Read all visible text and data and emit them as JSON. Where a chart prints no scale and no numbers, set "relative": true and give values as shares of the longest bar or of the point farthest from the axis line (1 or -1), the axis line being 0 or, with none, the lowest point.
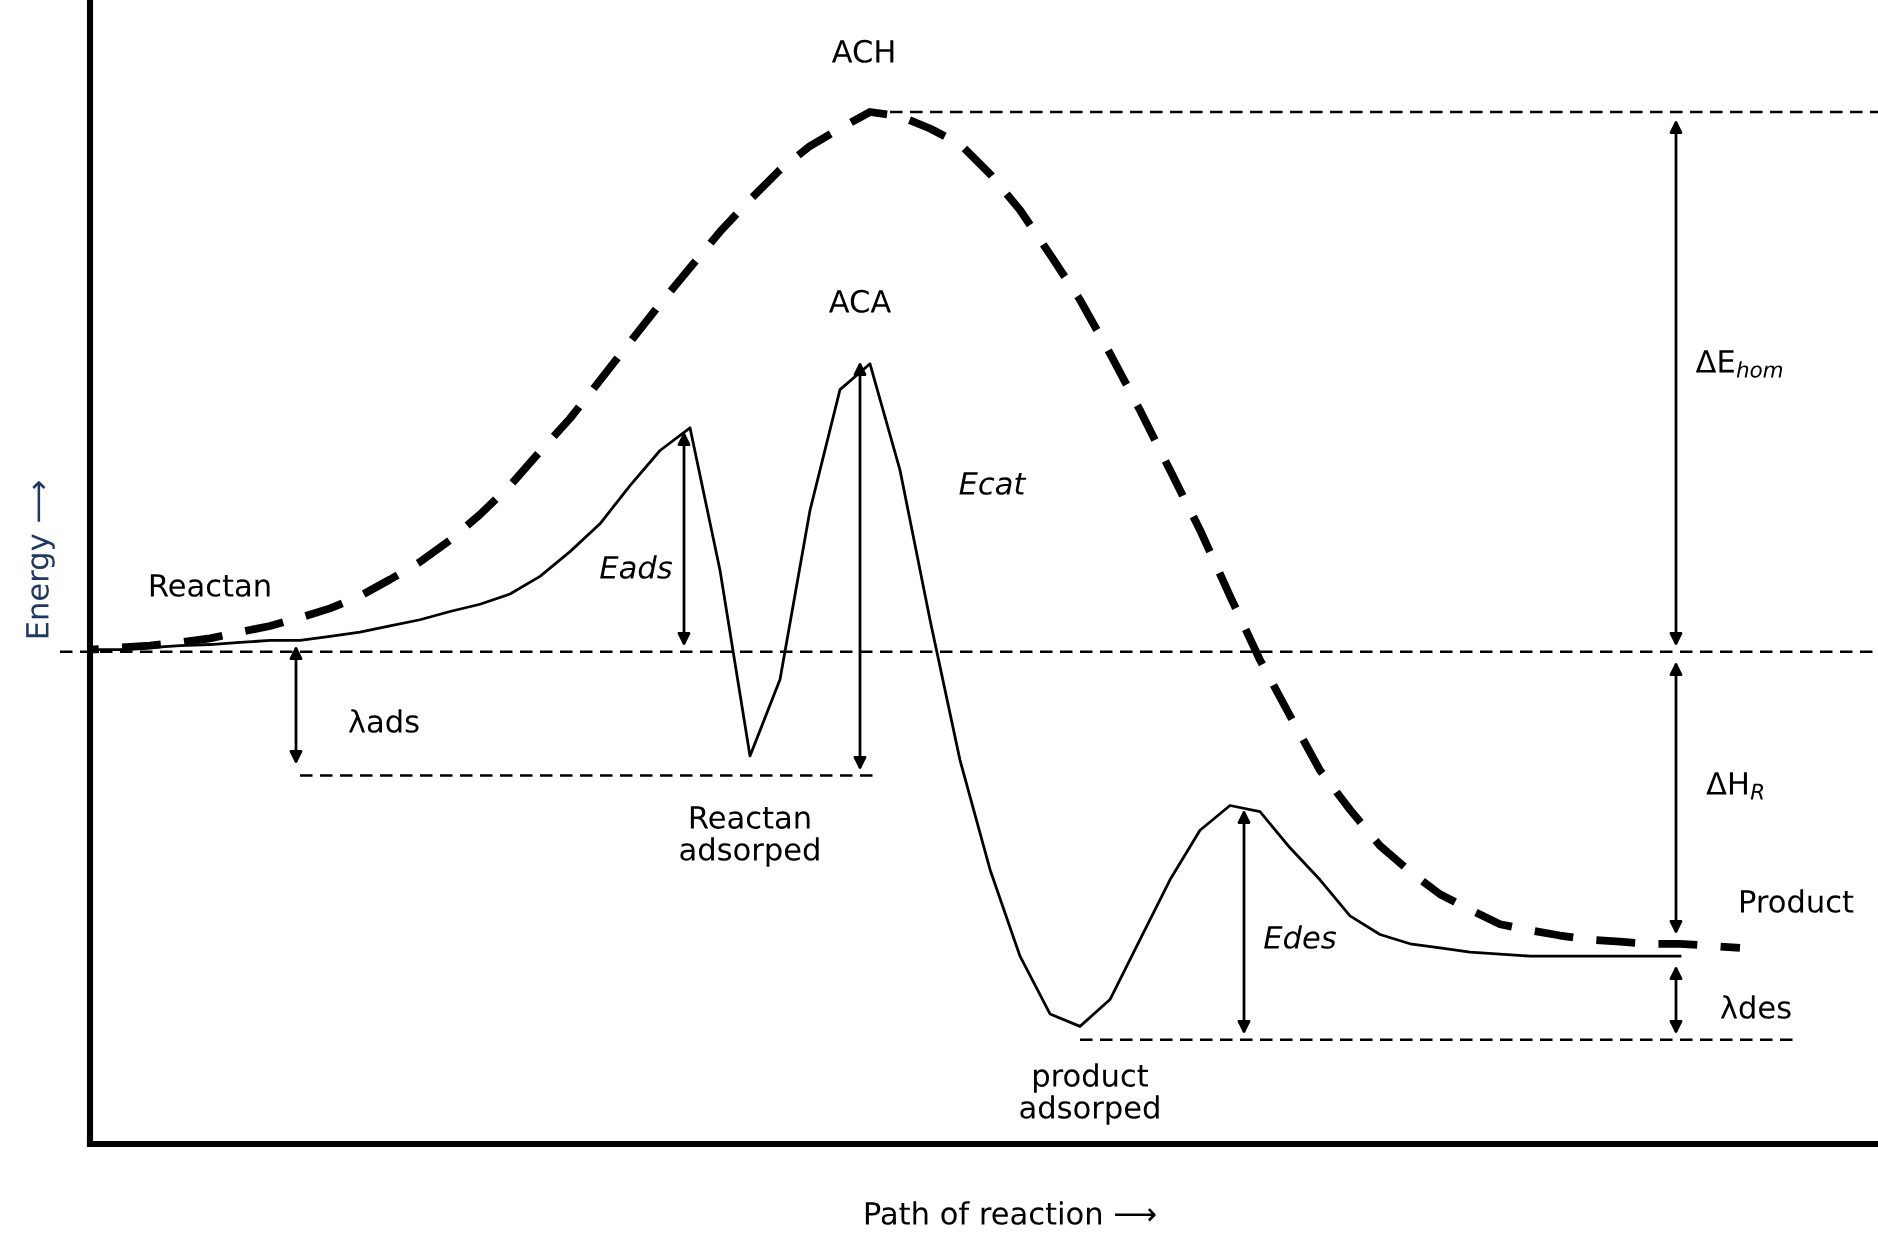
{
  "chart_data": {
    "type": "line",
    "relative": true,
    "xlabel": "Path of reaction ⟶",
    "ylabel": "Energy ⟶",
    "legend": false,
    "marker": "none",
    "categories": [
      null,
      null,
      null,
      null,
      null,
      null,
      null,
      null,
      null,
      null,
      null,
      null,
      null,
      null,
      null,
      null,
      null,
      null,
      null,
      null,
      null,
      null,
      null,
      null,
      null,
      null,
      null,
      null,
      null,
      null,
      null,
      null,
      null,
      null,
      null,
      null,
      null,
      null,
      null,
      null,
      null,
      null,
      null,
      null,
      null,
      null,
      null,
      null,
      null,
      null,
      null,
      null,
      null,
      null,
      null,
      null,
      null
    ],
    "series": [
      {
        "color": "#000000",
        "line_style": "dashed",
        "values": [
          0.477,
          0.479,
          0.481,
          0.483,
          0.486,
          0.49,
          0.496,
          0.502,
          0.51,
          0.519,
          0.531,
          0.547,
          0.564,
          0.585,
          0.61,
          0.638,
          0.671,
          0.703,
          0.74,
          0.777,
          0.814,
          0.849,
          0.884,
          0.915,
          0.944,
          0.967,
          0.984,
          1.0,
          0.996,
          0.984,
          0.969,
          0.94,
          0.905,
          0.862,
          0.818,
          0.766,
          0.711,
          0.653,
          0.595,
          0.531,
          0.469,
          0.415,
          0.362,
          0.324,
          0.289,
          0.264,
          0.242,
          0.227,
          0.213,
          0.207,
          0.202,
          0.198,
          0.196,
          0.194,
          0.194,
          0.192,
          0.19
        ]
      },
      {
        "color": "#000000",
        "line_style": "solid",
        "values": [
          0.477,
          0.479,
          0.479,
          0.481,
          0.483,
          0.484,
          0.486,
          0.488,
          0.488,
          0.492,
          0.496,
          0.502,
          0.508,
          0.516,
          0.523,
          0.533,
          0.55,
          0.574,
          0.601,
          0.638,
          0.672,
          0.694,
          0.556,
          0.376,
          0.45,
          0.614,
          0.731,
          0.756,
          0.653,
          0.508,
          0.372,
          0.266,
          0.182,
          0.126,
          0.114,
          0.14,
          0.198,
          0.256,
          0.304,
          0.328,
          0.322,
          0.287,
          0.256,
          0.221,
          0.203,
          0.194,
          0.19,
          0.186,
          0.184,
          0.182,
          0.182,
          0.182,
          0.182,
          0.182,
          0.182,
          null,
          null
        ]
      }
    ],
    "ref_lines": [
      {
        "axis": "y",
        "value": 0.477,
        "line_style": "dashed",
        "color": "#000000"
      },
      {
        "axis": "y",
        "value": 1.0,
        "line_style": "dashed",
        "color": "#000000"
      },
      {
        "axis": "y",
        "value": 0.357,
        "line_style": "dashed",
        "color": "#000000"
      },
      {
        "axis": "y",
        "value": 0.101,
        "line_style": "dashed",
        "color": "#000000"
      }
    ],
    "annotations": [
      "ACH",
      "ACA",
      "Reactan",
      "Eads",
      "λads",
      "Ecat",
      "Reactan\nadsorped",
      "ΔE$_{hom}$",
      "ΔH$_{R}$",
      "Product",
      "Edes",
      "λdes",
      "product\nadsorped"
    ]
  }
}
